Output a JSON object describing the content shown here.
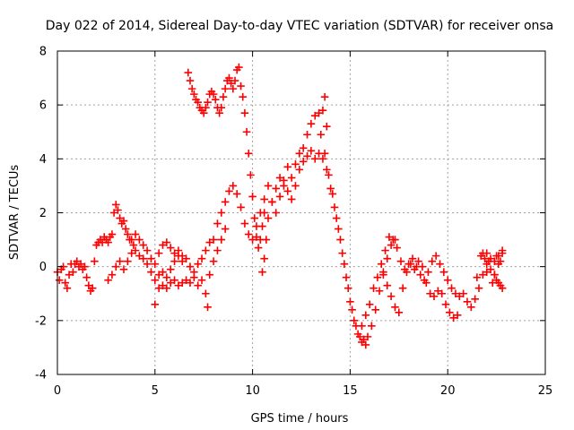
{
  "chart_data": {
    "type": "scatter",
    "title": "Day 022 of 2014, Sidereal Day-to-day VTEC variation (SDTVAR) for receiver onsa",
    "xlabel": "GPS time / hours",
    "ylabel": "SDTVAR / TECUs",
    "xlim": [
      0,
      25
    ],
    "ylim": [
      -4,
      8
    ],
    "xticks": [
      0,
      5,
      10,
      15,
      20,
      25
    ],
    "yticks": [
      -4,
      -2,
      0,
      2,
      4,
      6,
      8
    ],
    "grid": true,
    "marker": "+",
    "color": "#ff0000",
    "series": [
      {
        "name": "SDTVAR",
        "points": [
          [
            0.0,
            -0.2
          ],
          [
            0.1,
            -0.5
          ],
          [
            0.2,
            -0.1
          ],
          [
            0.3,
            0.0
          ],
          [
            0.4,
            -0.6
          ],
          [
            0.5,
            -0.8
          ],
          [
            0.6,
            -0.3
          ],
          [
            0.7,
            0.1
          ],
          [
            0.8,
            -0.2
          ],
          [
            0.9,
            0.1
          ],
          [
            1.0,
            0.2
          ],
          [
            1.1,
            0.0
          ],
          [
            1.2,
            0.1
          ],
          [
            1.3,
            -0.1
          ],
          [
            1.4,
            0.0
          ],
          [
            1.5,
            -0.4
          ],
          [
            1.6,
            -0.7
          ],
          [
            1.7,
            -0.9
          ],
          [
            1.8,
            -0.8
          ],
          [
            1.9,
            0.2
          ],
          [
            2.0,
            0.8
          ],
          [
            2.1,
            0.9
          ],
          [
            2.2,
            1.0
          ],
          [
            2.3,
            0.9
          ],
          [
            2.4,
            1.1
          ],
          [
            2.5,
            1.0
          ],
          [
            2.6,
            0.9
          ],
          [
            2.7,
            1.1
          ],
          [
            2.8,
            1.2
          ],
          [
            2.9,
            2.0
          ],
          [
            3.0,
            2.3
          ],
          [
            3.1,
            2.1
          ],
          [
            3.2,
            1.8
          ],
          [
            3.3,
            1.6
          ],
          [
            3.4,
            1.7
          ],
          [
            3.5,
            1.4
          ],
          [
            3.6,
            1.2
          ],
          [
            3.7,
            1.0
          ],
          [
            3.8,
            1.0
          ],
          [
            3.9,
            0.8
          ],
          [
            2.6,
            -0.5
          ],
          [
            2.8,
            -0.3
          ],
          [
            3.0,
            0.0
          ],
          [
            3.2,
            0.2
          ],
          [
            3.4,
            -0.1
          ],
          [
            3.6,
            0.2
          ],
          [
            3.8,
            0.5
          ],
          [
            4.0,
            0.6
          ],
          [
            4.2,
            0.4
          ],
          [
            4.4,
            0.3
          ],
          [
            4.6,
            0.1
          ],
          [
            4.8,
            -0.2
          ],
          [
            5.0,
            -0.5
          ],
          [
            5.2,
            -0.3
          ],
          [
            5.4,
            -0.2
          ],
          [
            5.6,
            -0.4
          ],
          [
            5.8,
            -0.1
          ],
          [
            6.0,
            0.2
          ],
          [
            6.2,
            0.4
          ],
          [
            6.4,
            0.2
          ],
          [
            4.0,
            1.2
          ],
          [
            4.2,
            1.0
          ],
          [
            4.4,
            0.8
          ],
          [
            4.6,
            0.6
          ],
          [
            4.8,
            0.3
          ],
          [
            5.0,
            0.1
          ],
          [
            5.2,
            0.5
          ],
          [
            5.4,
            0.8
          ],
          [
            5.6,
            0.9
          ],
          [
            5.8,
            0.7
          ],
          [
            6.0,
            0.5
          ],
          [
            6.2,
            0.6
          ],
          [
            6.4,
            0.4
          ],
          [
            6.6,
            0.3
          ],
          [
            6.8,
            0.0
          ],
          [
            7.0,
            -0.2
          ],
          [
            7.2,
            0.1
          ],
          [
            7.4,
            0.3
          ],
          [
            7.6,
            0.6
          ],
          [
            7.8,
            0.9
          ],
          [
            5.0,
            -1.4
          ],
          [
            5.2,
            -0.8
          ],
          [
            5.4,
            -0.7
          ],
          [
            5.6,
            -0.8
          ],
          [
            5.8,
            -0.6
          ],
          [
            6.0,
            -0.5
          ],
          [
            6.2,
            -0.7
          ],
          [
            6.4,
            -0.6
          ],
          [
            6.6,
            -0.5
          ],
          [
            6.8,
            -0.6
          ],
          [
            7.0,
            -0.4
          ],
          [
            7.2,
            -0.7
          ],
          [
            7.4,
            -0.5
          ],
          [
            7.6,
            -1.0
          ],
          [
            7.7,
            -1.5
          ],
          [
            7.8,
            -0.3
          ],
          [
            8.0,
            0.2
          ],
          [
            8.2,
            0.6
          ],
          [
            8.4,
            1.0
          ],
          [
            8.6,
            1.4
          ],
          [
            6.7,
            7.2
          ],
          [
            6.8,
            6.9
          ],
          [
            6.9,
            6.6
          ],
          [
            7.0,
            6.4
          ],
          [
            7.1,
            6.2
          ],
          [
            7.2,
            6.1
          ],
          [
            7.3,
            5.9
          ],
          [
            7.4,
            5.8
          ],
          [
            7.5,
            5.7
          ],
          [
            7.6,
            5.9
          ],
          [
            7.7,
            6.1
          ],
          [
            7.8,
            6.4
          ],
          [
            7.9,
            6.5
          ],
          [
            8.0,
            6.4
          ],
          [
            8.1,
            6.2
          ],
          [
            8.2,
            5.9
          ],
          [
            8.3,
            5.7
          ],
          [
            8.4,
            5.9
          ],
          [
            8.5,
            6.3
          ],
          [
            8.6,
            6.6
          ],
          [
            8.7,
            6.9
          ],
          [
            8.8,
            7.0
          ],
          [
            8.9,
            6.8
          ],
          [
            9.0,
            6.6
          ],
          [
            9.1,
            6.9
          ],
          [
            9.2,
            7.3
          ],
          [
            9.3,
            7.4
          ],
          [
            9.4,
            6.7
          ],
          [
            9.5,
            6.3
          ],
          [
            9.6,
            5.7
          ],
          [
            9.7,
            5.0
          ],
          [
            9.8,
            4.2
          ],
          [
            9.9,
            3.4
          ],
          [
            10.0,
            2.6
          ],
          [
            10.1,
            1.8
          ],
          [
            10.2,
            1.1
          ],
          [
            10.3,
            0.7
          ],
          [
            10.4,
            1.0
          ],
          [
            10.5,
            1.5
          ],
          [
            10.6,
            2.0
          ],
          [
            8.0,
            1.0
          ],
          [
            8.2,
            1.6
          ],
          [
            8.4,
            2.0
          ],
          [
            8.6,
            2.4
          ],
          [
            8.8,
            2.8
          ],
          [
            9.0,
            3.0
          ],
          [
            9.2,
            2.7
          ],
          [
            9.4,
            2.2
          ],
          [
            9.6,
            1.6
          ],
          [
            9.8,
            1.2
          ],
          [
            10.0,
            1.0
          ],
          [
            10.2,
            1.5
          ],
          [
            10.4,
            2.0
          ],
          [
            10.6,
            2.5
          ],
          [
            10.8,
            3.0
          ],
          [
            11.0,
            2.4
          ],
          [
            11.2,
            2.0
          ],
          [
            11.4,
            2.6
          ],
          [
            11.6,
            3.2
          ],
          [
            11.8,
            3.7
          ],
          [
            10.5,
            -0.2
          ],
          [
            10.6,
            0.3
          ],
          [
            10.7,
            1.0
          ],
          [
            10.8,
            1.8
          ],
          [
            11.0,
            2.4
          ],
          [
            11.2,
            2.9
          ],
          [
            11.4,
            3.3
          ],
          [
            11.6,
            3.0
          ],
          [
            11.8,
            2.8
          ],
          [
            12.0,
            3.3
          ],
          [
            12.2,
            3.8
          ],
          [
            12.4,
            4.2
          ],
          [
            12.6,
            4.4
          ],
          [
            12.8,
            4.9
          ],
          [
            13.0,
            5.3
          ],
          [
            13.2,
            5.6
          ],
          [
            13.4,
            5.7
          ],
          [
            13.6,
            5.8
          ],
          [
            13.7,
            6.3
          ],
          [
            13.8,
            5.2
          ],
          [
            12.0,
            2.5
          ],
          [
            12.2,
            3.0
          ],
          [
            12.4,
            3.6
          ],
          [
            12.6,
            3.9
          ],
          [
            12.8,
            4.1
          ],
          [
            13.0,
            4.3
          ],
          [
            13.2,
            4.0
          ],
          [
            13.4,
            4.2
          ],
          [
            13.6,
            4.0
          ],
          [
            13.8,
            3.6
          ],
          [
            14.0,
            2.9
          ],
          [
            14.2,
            2.2
          ],
          [
            14.4,
            1.4
          ],
          [
            14.6,
            0.5
          ],
          [
            14.8,
            -0.4
          ],
          [
            15.0,
            -1.3
          ],
          [
            15.2,
            -2.0
          ],
          [
            15.4,
            -2.5
          ],
          [
            15.6,
            -2.8
          ],
          [
            15.8,
            -2.9
          ],
          [
            13.5,
            4.9
          ],
          [
            13.7,
            4.2
          ],
          [
            13.9,
            3.4
          ],
          [
            14.1,
            2.7
          ],
          [
            14.3,
            1.8
          ],
          [
            14.5,
            1.0
          ],
          [
            14.7,
            0.1
          ],
          [
            14.9,
            -0.8
          ],
          [
            15.1,
            -1.6
          ],
          [
            15.3,
            -2.2
          ],
          [
            15.5,
            -2.6
          ],
          [
            15.7,
            -2.7
          ],
          [
            15.9,
            -2.6
          ],
          [
            16.1,
            -2.2
          ],
          [
            16.3,
            -1.6
          ],
          [
            16.5,
            -0.9
          ],
          [
            16.7,
            -0.3
          ],
          [
            16.9,
            0.3
          ],
          [
            17.1,
            0.8
          ],
          [
            17.3,
            1.0
          ],
          [
            15.6,
            -2.2
          ],
          [
            15.8,
            -1.8
          ],
          [
            16.0,
            -1.4
          ],
          [
            16.2,
            -0.8
          ],
          [
            16.4,
            -0.4
          ],
          [
            16.6,
            0.1
          ],
          [
            16.8,
            0.6
          ],
          [
            17.0,
            1.1
          ],
          [
            17.2,
            1.0
          ],
          [
            17.4,
            0.7
          ],
          [
            17.6,
            0.2
          ],
          [
            17.8,
            -0.1
          ],
          [
            18.0,
            0.1
          ],
          [
            18.2,
            0.3
          ],
          [
            18.4,
            0.0
          ],
          [
            18.6,
            -0.3
          ],
          [
            18.8,
            -0.5
          ],
          [
            19.0,
            -0.2
          ],
          [
            19.2,
            0.2
          ],
          [
            19.4,
            0.4
          ],
          [
            16.7,
            -0.2
          ],
          [
            16.9,
            -0.7
          ],
          [
            17.1,
            -1.1
          ],
          [
            17.3,
            -1.5
          ],
          [
            17.5,
            -1.7
          ],
          [
            17.7,
            -0.8
          ],
          [
            17.9,
            -0.2
          ],
          [
            18.1,
            0.1
          ],
          [
            18.3,
            -0.1
          ],
          [
            18.5,
            0.2
          ],
          [
            18.7,
            0.0
          ],
          [
            18.9,
            -0.6
          ],
          [
            19.1,
            -1.0
          ],
          [
            19.3,
            -1.1
          ],
          [
            19.5,
            -0.9
          ],
          [
            19.7,
            -1.0
          ],
          [
            19.9,
            -1.4
          ],
          [
            20.1,
            -1.7
          ],
          [
            20.3,
            -1.9
          ],
          [
            20.5,
            -1.8
          ],
          [
            19.6,
            0.1
          ],
          [
            19.8,
            -0.2
          ],
          [
            20.0,
            -0.5
          ],
          [
            20.2,
            -0.8
          ],
          [
            20.4,
            -1.0
          ],
          [
            20.6,
            -1.1
          ],
          [
            20.8,
            -1.0
          ],
          [
            21.0,
            -1.3
          ],
          [
            21.2,
            -1.5
          ],
          [
            21.4,
            -1.2
          ],
          [
            21.6,
            -0.8
          ],
          [
            21.8,
            -0.3
          ],
          [
            22.0,
            0.1
          ],
          [
            22.2,
            0.3
          ],
          [
            22.4,
            0.2
          ],
          [
            22.6,
            0.4
          ],
          [
            22.8,
            0.6
          ],
          [
            21.5,
            -0.4
          ],
          [
            22.0,
            -0.2
          ],
          [
            22.4,
            -0.3
          ],
          [
            22.1,
            0.2
          ],
          [
            22.2,
            -0.1
          ],
          [
            22.3,
            -0.6
          ],
          [
            22.4,
            -0.3
          ],
          [
            22.5,
            -0.5
          ],
          [
            22.6,
            -0.6
          ],
          [
            22.7,
            -0.7
          ],
          [
            22.8,
            -0.8
          ],
          [
            21.7,
            0.4
          ],
          [
            21.8,
            0.5
          ],
          [
            21.9,
            0.3
          ],
          [
            22.0,
            0.5
          ],
          [
            22.5,
            0.4
          ],
          [
            22.6,
            0.1
          ],
          [
            22.7,
            0.2
          ],
          [
            22.8,
            0.5
          ]
        ]
      }
    ]
  }
}
